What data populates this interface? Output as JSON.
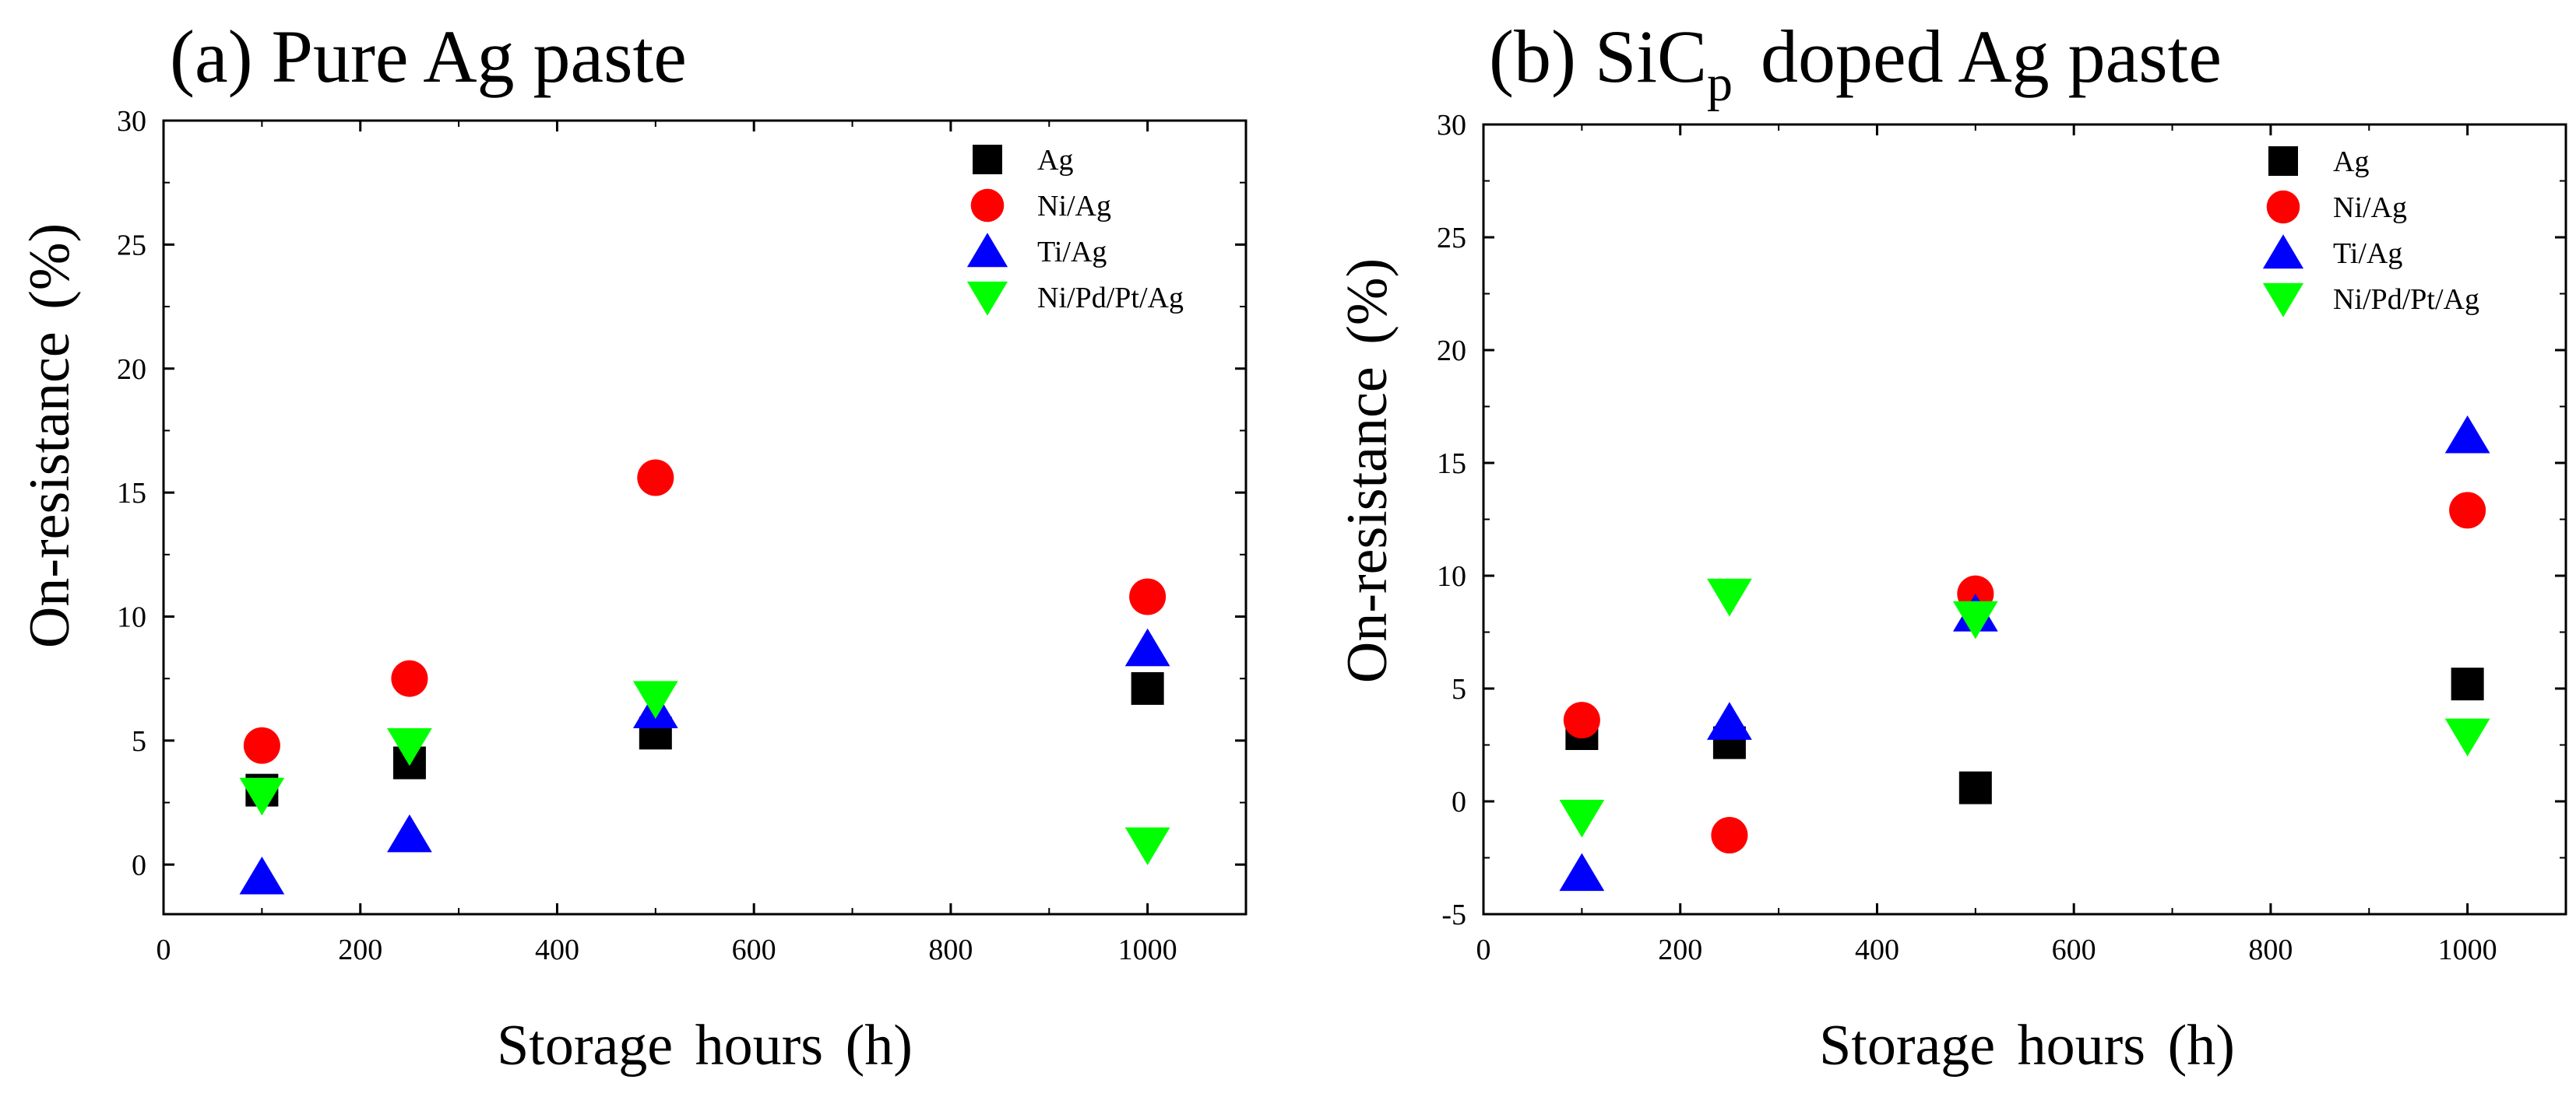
{
  "chart_data": [
    {
      "type": "scatter",
      "title": "(a) Pure Ag paste",
      "xlabel": "Storage hours (h)",
      "ylabel": "On-resistance (%)",
      "xlim": [
        0,
        1100
      ],
      "ylim": [
        -2,
        30
      ],
      "xticks": [
        0,
        200,
        400,
        600,
        800,
        1000
      ],
      "yticks": [
        0,
        5,
        10,
        15,
        20,
        25,
        30
      ],
      "legend_position": "top-right",
      "series": [
        {
          "name": "Ag",
          "marker": "square",
          "color": "#000000",
          "x": [
            100,
            250,
            500,
            1000
          ],
          "y": [
            3.0,
            4.1,
            5.3,
            7.1
          ]
        },
        {
          "name": "Ni/Ag",
          "marker": "circle",
          "color": "#ff0000",
          "x": [
            100,
            250,
            500,
            1000
          ],
          "y": [
            4.8,
            7.5,
            15.6,
            10.8
          ]
        },
        {
          "name": "Ti/Ag",
          "marker": "triangle-up",
          "color": "#0000ff",
          "x": [
            100,
            250,
            500,
            1000
          ],
          "y": [
            -0.5,
            1.2,
            6.2,
            8.7
          ]
        },
        {
          "name": "Ni/Pd/Pt/Ag",
          "marker": "triangle-down",
          "color": "#00ff00",
          "x": [
            100,
            250,
            500,
            1000
          ],
          "y": [
            2.8,
            4.8,
            6.7,
            0.8
          ]
        }
      ]
    },
    {
      "type": "scatter",
      "title": "(b) SiC",
      "title_subscript": "p",
      "title_rest": "doped Ag paste",
      "xlabel": "Storage hours (h)",
      "ylabel": "On-resistance (%)",
      "xlim": [
        0,
        1100
      ],
      "ylim": [
        -5,
        30
      ],
      "xticks": [
        0,
        200,
        400,
        600,
        800,
        1000
      ],
      "yticks": [
        -5,
        0,
        5,
        10,
        15,
        20,
        25,
        30
      ],
      "legend_position": "top-right",
      "series": [
        {
          "name": "Ag",
          "marker": "square",
          "color": "#000000",
          "x": [
            100,
            250,
            500,
            1000
          ],
          "y": [
            3.0,
            2.6,
            0.6,
            5.2
          ]
        },
        {
          "name": "Ni/Ag",
          "marker": "circle",
          "color": "#ff0000",
          "x": [
            100,
            250,
            500,
            1000
          ],
          "y": [
            3.6,
            -1.5,
            9.2,
            12.9
          ]
        },
        {
          "name": "Ti/Ag",
          "marker": "triangle-up",
          "color": "#0000ff",
          "x": [
            100,
            250,
            500,
            1000
          ],
          "y": [
            -3.2,
            3.5,
            8.3,
            16.2
          ]
        },
        {
          "name": "Ni/Pd/Pt/Ag",
          "marker": "triangle-down",
          "color": "#00ff00",
          "x": [
            100,
            250,
            500,
            1000
          ],
          "y": [
            -0.7,
            9.1,
            8.1,
            2.9
          ]
        }
      ]
    }
  ]
}
